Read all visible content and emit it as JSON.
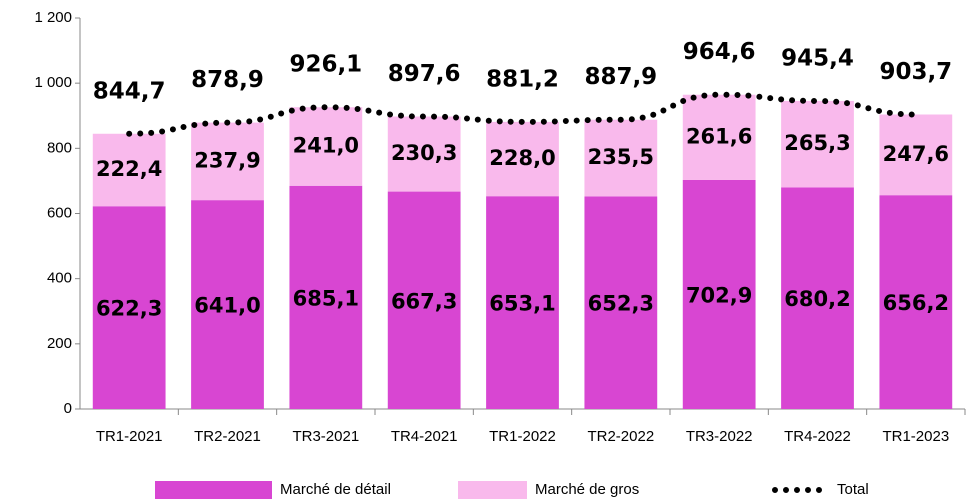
{
  "chart_data": {
    "type": "bar",
    "stacked": true,
    "categories": [
      "TR1-2021",
      "TR2-2021",
      "TR3-2021",
      "TR4-2021",
      "TR1-2022",
      "TR2-2022",
      "TR3-2022",
      "TR4-2022",
      "TR1-2023"
    ],
    "series": [
      {
        "name": "Marché de détail",
        "color": "#d846d2",
        "values": [
          622.3,
          641.0,
          685.1,
          667.3,
          653.1,
          652.3,
          702.9,
          680.2,
          656.2
        ],
        "value_labels": [
          "622,3",
          "641,0",
          "685,1",
          "667,3",
          "653,1",
          "652,3",
          "702,9",
          "680,2",
          "656,2"
        ]
      },
      {
        "name": "Marché de gros",
        "color": "#f9b9ec",
        "values": [
          222.4,
          237.9,
          241.0,
          230.3,
          228.0,
          235.5,
          261.6,
          265.3,
          247.6
        ],
        "value_labels": [
          "222,4",
          "237,9",
          "241,0",
          "230,3",
          "228,0",
          "235,5",
          "261,6",
          "265,3",
          "247,6"
        ]
      },
      {
        "name": "Total",
        "type": "line",
        "color": "#000000",
        "values": [
          844.7,
          878.9,
          926.1,
          897.6,
          881.2,
          887.9,
          964.6,
          945.4,
          903.7
        ],
        "value_labels": [
          "844,7",
          "878,9",
          "926,1",
          "897,6",
          "881,2",
          "887,9",
          "964,6",
          "945,4",
          "903,7"
        ]
      }
    ],
    "ylim": [
      0,
      1200
    ],
    "yticks": [
      0,
      200,
      400,
      600,
      800,
      {
        "value": 1000,
        "label": "1 000"
      },
      {
        "value": 1200,
        "label": "1 200"
      }
    ],
    "legend": "bottom"
  }
}
